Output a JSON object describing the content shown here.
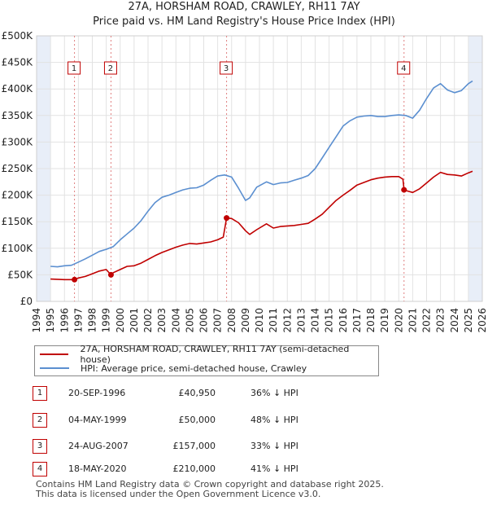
{
  "title_line1": "27A, HORSHAM ROAD, CRAWLEY, RH11 7AY",
  "title_line2": "Price paid vs. HM Land Registry's House Price Index (HPI)",
  "colors": {
    "property": "#c00000",
    "hpi": "#5b8fd0",
    "marker_border": "#c00000",
    "shade": "#e8eef8"
  },
  "chart_data": {
    "type": "line",
    "ylim": [
      0,
      500000
    ],
    "xlim": [
      1994.0,
      2026.0
    ],
    "y_ticks": [
      {
        "value": 0,
        "label": "£0"
      },
      {
        "value": 50000,
        "label": "£50K"
      },
      {
        "value": 100000,
        "label": "£100K"
      },
      {
        "value": 150000,
        "label": "£150K"
      },
      {
        "value": 200000,
        "label": "£200K"
      },
      {
        "value": 250000,
        "label": "£250K"
      },
      {
        "value": 300000,
        "label": "£300K"
      },
      {
        "value": 350000,
        "label": "£350K"
      },
      {
        "value": 400000,
        "label": "£400K"
      },
      {
        "value": 450000,
        "label": "£450K"
      },
      {
        "value": 500000,
        "label": "£500K"
      }
    ],
    "x_ticks": [
      "1994",
      "1995",
      "1996",
      "1997",
      "1998",
      "1999",
      "2000",
      "2001",
      "2002",
      "2003",
      "2004",
      "2005",
      "2006",
      "2007",
      "2008",
      "2009",
      "2010",
      "2011",
      "2012",
      "2013",
      "2014",
      "2015",
      "2016",
      "2017",
      "2018",
      "2019",
      "2020",
      "2021",
      "2022",
      "2023",
      "2024",
      "2025",
      "2026"
    ],
    "shaded_ranges": [
      [
        1994.0,
        1995.0
      ],
      [
        2025.0,
        2026.0
      ]
    ],
    "series": [
      {
        "name": "27A, HORSHAM ROAD, CRAWLEY, RH11 7AY (semi-detached house)",
        "x": [
          1995.0,
          1995.5,
          1996.0,
          1996.72,
          1997.0,
          1997.5,
          1998.0,
          1998.5,
          1999.0,
          1999.34,
          1999.5,
          2000.0,
          2000.5,
          2001.0,
          2001.5,
          2002.0,
          2002.5,
          2003.0,
          2003.5,
          2004.0,
          2004.5,
          2005.0,
          2005.5,
          2006.0,
          2006.5,
          2007.0,
          2007.4,
          2007.64,
          2008.0,
          2008.5,
          2009.0,
          2009.3,
          2009.8,
          2010.5,
          2011.0,
          2011.5,
          2012.0,
          2012.5,
          2013.0,
          2013.5,
          2014.0,
          2014.5,
          2015.0,
          2015.5,
          2016.0,
          2016.5,
          2017.0,
          2017.5,
          2018.0,
          2018.5,
          2019.0,
          2019.5,
          2020.0,
          2020.3,
          2020.38,
          2020.6,
          2021.0,
          2021.5,
          2022.0,
          2022.5,
          2023.0,
          2023.5,
          2024.0,
          2024.5,
          2025.0,
          2025.3
        ],
        "values": [
          42000,
          41500,
          41000,
          40950,
          44000,
          47000,
          52000,
          57000,
          60000,
          50000,
          54000,
          60000,
          66000,
          67000,
          72000,
          79000,
          86000,
          92000,
          97000,
          102000,
          106000,
          109000,
          108000,
          110000,
          112000,
          116000,
          121000,
          157000,
          156000,
          148000,
          133000,
          126000,
          135000,
          146000,
          138000,
          141000,
          142000,
          143000,
          145000,
          147000,
          155000,
          164000,
          177000,
          190000,
          200000,
          209000,
          219000,
          224000,
          229000,
          232000,
          234000,
          235000,
          235000,
          230000,
          210000,
          208000,
          205000,
          212000,
          223000,
          234000,
          243000,
          239000,
          238000,
          236000,
          242000,
          245000
        ]
      },
      {
        "name": "HPI: Average price, semi-detached house, Crawley",
        "x": [
          1995.0,
          1995.5,
          1996.0,
          1996.5,
          1997.0,
          1997.5,
          1998.0,
          1998.5,
          1999.0,
          1999.5,
          2000.0,
          2000.5,
          2001.0,
          2001.5,
          2002.0,
          2002.5,
          2003.0,
          2003.5,
          2004.0,
          2004.5,
          2005.0,
          2005.5,
          2006.0,
          2006.5,
          2007.0,
          2007.5,
          2008.0,
          2008.5,
          2009.0,
          2009.3,
          2009.8,
          2010.5,
          2011.0,
          2011.5,
          2012.0,
          2012.5,
          2013.0,
          2013.5,
          2014.0,
          2014.5,
          2015.0,
          2015.5,
          2016.0,
          2016.5,
          2017.0,
          2017.5,
          2018.0,
          2018.5,
          2019.0,
          2019.5,
          2020.0,
          2020.5,
          2021.0,
          2021.5,
          2022.0,
          2022.5,
          2023.0,
          2023.5,
          2024.0,
          2024.5,
          2025.0,
          2025.3
        ],
        "values": [
          66000,
          65000,
          67000,
          68000,
          74000,
          80000,
          87000,
          94000,
          98000,
          103000,
          116000,
          127000,
          138000,
          152000,
          170000,
          186000,
          196000,
          200000,
          205000,
          210000,
          213000,
          214000,
          219000,
          228000,
          236000,
          238000,
          234000,
          213000,
          190000,
          195000,
          215000,
          225000,
          220000,
          223000,
          224000,
          228000,
          232000,
          237000,
          250000,
          270000,
          290000,
          310000,
          330000,
          340000,
          347000,
          349000,
          350000,
          348000,
          348000,
          350000,
          351000,
          350000,
          345000,
          360000,
          382000,
          402000,
          410000,
          398000,
          393000,
          397000,
          410000,
          415000
        ]
      }
    ],
    "markers": [
      {
        "label": "1",
        "x": 1996.72,
        "y": 40950
      },
      {
        "label": "2",
        "x": 1999.34,
        "y": 50000
      },
      {
        "label": "3",
        "x": 2007.64,
        "y": 157000
      },
      {
        "label": "4",
        "x": 2020.38,
        "y": 210000
      }
    ]
  },
  "legend": {
    "property": "27A, HORSHAM ROAD, CRAWLEY, RH11 7AY (semi-detached house)",
    "hpi": "HPI: Average price, semi-detached house, Crawley"
  },
  "transactions": [
    {
      "num": "1",
      "date": "20-SEP-1996",
      "price": "£40,950",
      "diff": "36% ↓ HPI"
    },
    {
      "num": "2",
      "date": "04-MAY-1999",
      "price": "£50,000",
      "diff": "48% ↓ HPI"
    },
    {
      "num": "3",
      "date": "24-AUG-2007",
      "price": "£157,000",
      "diff": "33% ↓ HPI"
    },
    {
      "num": "4",
      "date": "18-MAY-2020",
      "price": "£210,000",
      "diff": "41% ↓ HPI"
    }
  ],
  "footer": {
    "line1": "Contains HM Land Registry data © Crown copyright and database right 2025.",
    "line2": "This data is licensed under the Open Government Licence v3.0."
  }
}
